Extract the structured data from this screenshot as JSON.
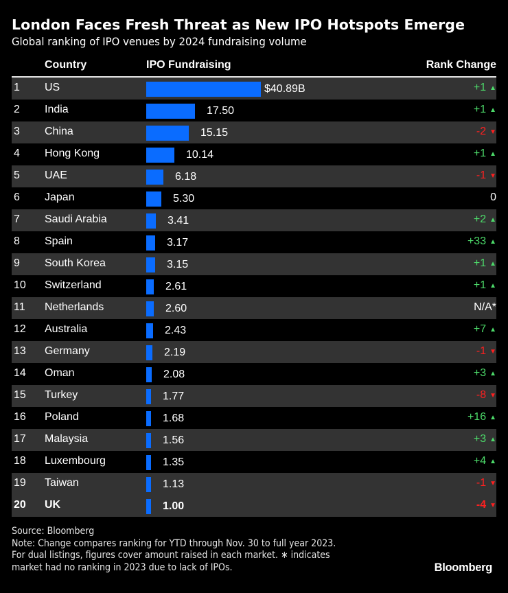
{
  "header": {
    "title": "London Faces Fresh Threat as New IPO Hotspots Emerge",
    "subtitle": "Global ranking of IPO venues by 2024 fundraising volume"
  },
  "table": {
    "columns": [
      "",
      "Country",
      "IPO Fundraising",
      "Rank Change"
    ],
    "rows": [
      {
        "rank": "1",
        "country": "US",
        "value": 40.89,
        "label": "$40.89B",
        "change": "+1",
        "dir": "up"
      },
      {
        "rank": "2",
        "country": "India",
        "value": 17.5,
        "label": "17.50",
        "change": "+1",
        "dir": "up"
      },
      {
        "rank": "3",
        "country": "China",
        "value": 15.15,
        "label": "15.15",
        "change": "-2",
        "dir": "down"
      },
      {
        "rank": "4",
        "country": "Hong Kong",
        "value": 10.14,
        "label": "10.14",
        "change": "+1",
        "dir": "up"
      },
      {
        "rank": "5",
        "country": "UAE",
        "value": 6.18,
        "label": "6.18",
        "change": "-1",
        "dir": "down"
      },
      {
        "rank": "6",
        "country": "Japan",
        "value": 5.3,
        "label": "5.30",
        "change": "0",
        "dir": "flat"
      },
      {
        "rank": "7",
        "country": "Saudi Arabia",
        "value": 3.41,
        "label": "3.41",
        "change": "+2",
        "dir": "up"
      },
      {
        "rank": "8",
        "country": "Spain",
        "value": 3.17,
        "label": "3.17",
        "change": "+33",
        "dir": "up"
      },
      {
        "rank": "9",
        "country": "South Korea",
        "value": 3.15,
        "label": "3.15",
        "change": "+1",
        "dir": "up"
      },
      {
        "rank": "10",
        "country": "Switzerland",
        "value": 2.61,
        "label": "2.61",
        "change": "+1",
        "dir": "up"
      },
      {
        "rank": "11",
        "country": "Netherlands",
        "value": 2.6,
        "label": "2.60",
        "change": "N/A*",
        "dir": "flat"
      },
      {
        "rank": "12",
        "country": "Australia",
        "value": 2.43,
        "label": "2.43",
        "change": "+7",
        "dir": "up"
      },
      {
        "rank": "13",
        "country": "Germany",
        "value": 2.19,
        "label": "2.19",
        "change": "-1",
        "dir": "down"
      },
      {
        "rank": "14",
        "country": "Oman",
        "value": 2.08,
        "label": "2.08",
        "change": "+3",
        "dir": "up"
      },
      {
        "rank": "15",
        "country": "Turkey",
        "value": 1.77,
        "label": "1.77",
        "change": "-8",
        "dir": "down"
      },
      {
        "rank": "16",
        "country": "Poland",
        "value": 1.68,
        "label": "1.68",
        "change": "+16",
        "dir": "up"
      },
      {
        "rank": "17",
        "country": "Malaysia",
        "value": 1.56,
        "label": "1.56",
        "change": "+3",
        "dir": "up"
      },
      {
        "rank": "18",
        "country": "Luxembourg",
        "value": 1.35,
        "label": "1.35",
        "change": "+4",
        "dir": "up"
      },
      {
        "rank": "19",
        "country": "Taiwan",
        "value": 1.13,
        "label": "1.13",
        "change": "-1",
        "dir": "down"
      },
      {
        "rank": "20",
        "country": "UK",
        "value": 1.0,
        "label": "1.00",
        "change": "-4",
        "dir": "down",
        "highlight": true
      }
    ]
  },
  "colors": {
    "bar": "#0a6cff",
    "up": "#4ddb6a",
    "down": "#ff2020",
    "row_alt": "#333333",
    "background": "#000000"
  },
  "icons": {
    "up": "▲",
    "down": "▼"
  },
  "footer": {
    "source": "Source: Bloomberg",
    "note_1": "Note: Change compares ranking for YTD through Nov. 30 to full year 2023.",
    "note_2": "For dual listings, figures cover amount raised in each market. ∗ indicates",
    "note_3": "market had no ranking in 2023 due to lack of IPOs.",
    "brand": "Bloomberg"
  },
  "chart_data": {
    "type": "bar",
    "orientation": "horizontal",
    "title": "London Faces Fresh Threat as New IPO Hotspots Emerge",
    "subtitle": "Global ranking of IPO venues by 2024 fundraising volume",
    "xlabel": "IPO Fundraising ($B)",
    "ylabel": "Country",
    "categories": [
      "US",
      "India",
      "China",
      "Hong Kong",
      "UAE",
      "Japan",
      "Saudi Arabia",
      "Spain",
      "South Korea",
      "Switzerland",
      "Netherlands",
      "Australia",
      "Germany",
      "Oman",
      "Turkey",
      "Poland",
      "Malaysia",
      "Luxembourg",
      "Taiwan",
      "UK"
    ],
    "values": [
      40.89,
      17.5,
      15.15,
      10.14,
      6.18,
      5.3,
      3.41,
      3.17,
      3.15,
      2.61,
      2.6,
      2.43,
      2.19,
      2.08,
      1.77,
      1.68,
      1.56,
      1.35,
      1.13,
      1.0
    ],
    "rank_change": [
      "+1",
      "+1",
      "-2",
      "+1",
      "-1",
      "0",
      "+2",
      "+33",
      "+1",
      "+1",
      "N/A*",
      "+7",
      "-1",
      "+3",
      "-8",
      "+16",
      "+3",
      "+4",
      "-1",
      "-4"
    ],
    "units": "USD billions",
    "highlight": "UK",
    "source": "Source: Bloomberg",
    "notes": "Note: Change compares ranking for YTD through Nov. 30 to full year 2023. For dual listings, figures cover amount raised in each market. ∗ indicates market had no ranking in 2023 due to lack of IPOs."
  }
}
